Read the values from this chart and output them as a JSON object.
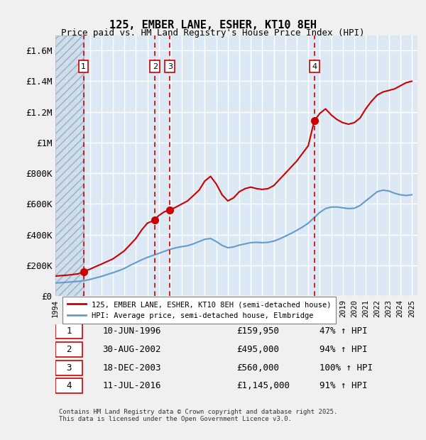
{
  "title": "125, EMBER LANE, ESHER, KT10 8EH",
  "subtitle": "Price paid vs. HM Land Registry's House Price Index (HPI)",
  "ylabel": "",
  "background_color": "#dce9f5",
  "plot_bg_color": "#dce9f5",
  "hatch_color": "#aabbcc",
  "grid_color": "#ffffff",
  "ylim": [
    0,
    1700000
  ],
  "xlim_start": 1994.0,
  "xlim_end": 2025.5,
  "yticks": [
    0,
    200000,
    400000,
    600000,
    800000,
    1000000,
    1200000,
    1400000,
    1600000
  ],
  "ytick_labels": [
    "£0",
    "£200K",
    "£400K",
    "£600K",
    "£800K",
    "£1M",
    "£1.2M",
    "£1.4M",
    "£1.6M"
  ],
  "xticks": [
    1994,
    1995,
    1996,
    1997,
    1998,
    1999,
    2000,
    2001,
    2002,
    2003,
    2004,
    2005,
    2006,
    2007,
    2008,
    2009,
    2010,
    2011,
    2012,
    2013,
    2014,
    2015,
    2016,
    2017,
    2018,
    2019,
    2020,
    2021,
    2022,
    2023,
    2024,
    2025
  ],
  "transactions": [
    {
      "num": 1,
      "date": "10-JUN-1996",
      "year": 1996.44,
      "price": 159950,
      "pct": "47%",
      "arrow": "↑"
    },
    {
      "num": 2,
      "date": "30-AUG-2002",
      "year": 2002.66,
      "price": 495000,
      "pct": "94%",
      "arrow": "↑"
    },
    {
      "num": 3,
      "date": "18-DEC-2003",
      "year": 2003.96,
      "price": 560000,
      "pct": "100%",
      "arrow": "↑"
    },
    {
      "num": 4,
      "date": "11-JUL-2016",
      "year": 2016.53,
      "price": 1145000,
      "pct": "91%",
      "arrow": "↑"
    }
  ],
  "red_line_color": "#cc0000",
  "blue_line_color": "#6699cc",
  "marker_color": "#cc0000",
  "vline_color": "#cc0000",
  "hatch_start": 1994.0,
  "hatch_end": 1996.44,
  "red_line": {
    "x": [
      1994.0,
      1994.5,
      1995.0,
      1995.5,
      1996.0,
      1996.44,
      1996.5,
      1997.0,
      1997.5,
      1998.0,
      1998.5,
      1999.0,
      1999.5,
      2000.0,
      2000.5,
      2001.0,
      2001.5,
      2002.0,
      2002.66,
      2002.8,
      2003.0,
      2003.5,
      2003.96,
      2004.0,
      2004.5,
      2005.0,
      2005.5,
      2006.0,
      2006.5,
      2007.0,
      2007.5,
      2008.0,
      2008.5,
      2009.0,
      2009.5,
      2010.0,
      2010.5,
      2011.0,
      2011.5,
      2012.0,
      2012.5,
      2013.0,
      2013.5,
      2014.0,
      2014.5,
      2015.0,
      2015.5,
      2016.0,
      2016.53,
      2016.8,
      2017.0,
      2017.5,
      2018.0,
      2018.5,
      2019.0,
      2019.5,
      2020.0,
      2020.5,
      2021.0,
      2021.5,
      2022.0,
      2022.5,
      2023.0,
      2023.5,
      2024.0,
      2024.5,
      2025.0
    ],
    "y": [
      130000,
      133000,
      136000,
      140000,
      145000,
      159950,
      161000,
      175000,
      192000,
      208000,
      225000,
      242000,
      268000,
      295000,
      335000,
      375000,
      430000,
      475000,
      495000,
      510000,
      525000,
      550000,
      560000,
      562000,
      580000,
      600000,
      620000,
      655000,
      690000,
      750000,
      780000,
      730000,
      660000,
      620000,
      640000,
      680000,
      700000,
      710000,
      700000,
      695000,
      700000,
      720000,
      760000,
      800000,
      840000,
      880000,
      930000,
      980000,
      1145000,
      1170000,
      1190000,
      1220000,
      1180000,
      1150000,
      1130000,
      1120000,
      1130000,
      1160000,
      1220000,
      1270000,
      1310000,
      1330000,
      1340000,
      1350000,
      1370000,
      1390000,
      1400000
    ]
  },
  "blue_line": {
    "x": [
      1994.0,
      1994.5,
      1995.0,
      1995.5,
      1996.0,
      1996.5,
      1997.0,
      1997.5,
      1998.0,
      1998.5,
      1999.0,
      1999.5,
      2000.0,
      2000.5,
      2001.0,
      2001.5,
      2002.0,
      2002.5,
      2003.0,
      2003.5,
      2004.0,
      2004.5,
      2005.0,
      2005.5,
      2006.0,
      2006.5,
      2007.0,
      2007.5,
      2008.0,
      2008.5,
      2009.0,
      2009.5,
      2010.0,
      2010.5,
      2011.0,
      2011.5,
      2012.0,
      2012.5,
      2013.0,
      2013.5,
      2014.0,
      2014.5,
      2015.0,
      2015.5,
      2016.0,
      2016.5,
      2017.0,
      2017.5,
      2018.0,
      2018.5,
      2019.0,
      2019.5,
      2020.0,
      2020.5,
      2021.0,
      2021.5,
      2022.0,
      2022.5,
      2023.0,
      2023.5,
      2024.0,
      2024.5,
      2025.0
    ],
    "y": [
      85000,
      87000,
      90000,
      93000,
      96000,
      100000,
      108000,
      118000,
      128000,
      140000,
      152000,
      165000,
      180000,
      200000,
      218000,
      236000,
      252000,
      265000,
      278000,
      292000,
      305000,
      315000,
      322000,
      328000,
      340000,
      355000,
      370000,
      375000,
      355000,
      330000,
      315000,
      320000,
      332000,
      340000,
      348000,
      350000,
      348000,
      350000,
      358000,
      372000,
      390000,
      408000,
      428000,
      450000,
      475000,
      510000,
      545000,
      570000,
      580000,
      580000,
      575000,
      570000,
      572000,
      590000,
      620000,
      650000,
      680000,
      690000,
      685000,
      670000,
      660000,
      655000,
      660000
    ]
  },
  "legend_line1": "125, EMBER LANE, ESHER, KT10 8EH (semi-detached house)",
  "legend_line2": "HPI: Average price, semi-detached house, Elmbridge",
  "table_rows": [
    {
      "num": 1,
      "date": "10-JUN-1996",
      "price": "£159,950",
      "pct_hpi": "47% ↑ HPI"
    },
    {
      "num": 2,
      "date": "30-AUG-2002",
      "price": "£495,000",
      "pct_hpi": "94% ↑ HPI"
    },
    {
      "num": 3,
      "date": "18-DEC-2003",
      "price": "£560,000",
      "pct_hpi": "100% ↑ HPI"
    },
    {
      "num": 4,
      "date": "11-JUL-2016",
      "price": "£1,145,000",
      "pct_hpi": "91% ↑ HPI"
    }
  ],
  "footnote": "Contains HM Land Registry data © Crown copyright and database right 2025.\nThis data is licensed under the Open Government Licence v3.0."
}
